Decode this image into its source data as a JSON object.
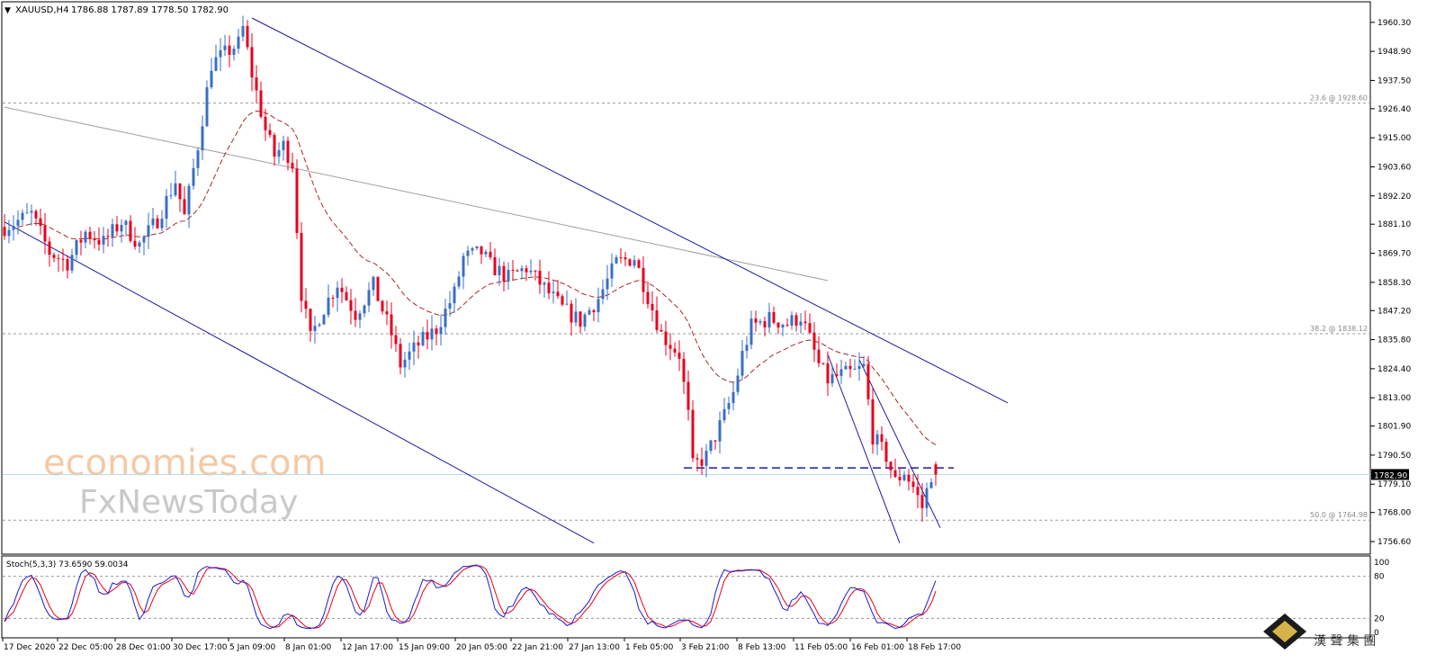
{
  "header": {
    "symbol": "XAUUSD,H4",
    "ohlc": "1786.88 1787.89 1778.50 1782.90"
  },
  "colors": {
    "background": "#ffffff",
    "axis": "#000000",
    "bull": "#3a6fc4",
    "bear": "#e8001c",
    "trendline": "#1a1aa0",
    "long_trendline": "#a0a0a0",
    "moving_average": "#a52a2a",
    "fib_line": "#9a9a9a",
    "bid_line": "#b8dcea",
    "stoch_main": "#1a1ad0",
    "stoch_signal": "#e8001c"
  },
  "watermark": {
    "line1": "economies.com",
    "line2": "FxNewsToday",
    "corner_text": "漢 聲 集 團"
  },
  "chart_data": {
    "type": "candlestick",
    "symbol": "XAUUSD",
    "timeframe": "H4",
    "ylim": [
      1752.0,
      1968.0
    ],
    "y_ticks": [
      "1960.30",
      "1948.90",
      "1937.50",
      "1926.40",
      "1915.00",
      "1903.60",
      "1892.20",
      "1881.10",
      "1869.70",
      "1858.30",
      "1847.20",
      "1835.80",
      "1824.40",
      "1813.00",
      "1801.90",
      "1790.50",
      "1779.10",
      "1768.00",
      "1756.60"
    ],
    "x_ticks": [
      "17 Dec 2020",
      "22 Dec 05:00",
      "28 Dec 01:00",
      "30 Dec 17:00",
      "5 Jan 09:00",
      "8 Jan 01:00",
      "12 Jan 17:00",
      "15 Jan 09:00",
      "20 Jan 05:00",
      "22 Jan 21:00",
      "27 Jan 13:00",
      "1 Feb 05:00",
      "3 Feb 21:00",
      "8 Feb 13:00",
      "11 Feb 05:00",
      "16 Feb 01:00",
      "18 Feb 17:00"
    ],
    "current_price": "1782.90",
    "fib_levels": [
      {
        "label": "23.6 @ 1928.60",
        "value": 1928.6
      },
      {
        "label": "38.2 @ 1838.12",
        "value": 1838.12
      },
      {
        "label": "50.0 @ 1764.98",
        "value": 1764.98
      }
    ],
    "support_level": 1785.5,
    "waypoints": [
      [
        0,
        1880
      ],
      [
        6,
        1885
      ],
      [
        10,
        1870
      ],
      [
        14,
        1866
      ],
      [
        18,
        1878
      ],
      [
        22,
        1874
      ],
      [
        26,
        1882
      ],
      [
        30,
        1873
      ],
      [
        34,
        1883
      ],
      [
        38,
        1898
      ],
      [
        40,
        1884
      ],
      [
        43,
        1912
      ],
      [
        46,
        1944
      ],
      [
        49,
        1948
      ],
      [
        52,
        1952
      ],
      [
        53,
        1958
      ],
      [
        55,
        1940
      ],
      [
        58,
        1918
      ],
      [
        60,
        1908
      ],
      [
        62,
        1912
      ],
      [
        64,
        1905
      ],
      [
        66,
        1854
      ],
      [
        68,
        1836
      ],
      [
        70,
        1845
      ],
      [
        74,
        1858
      ],
      [
        78,
        1846
      ],
      [
        82,
        1857
      ],
      [
        86,
        1838
      ],
      [
        88,
        1826
      ],
      [
        92,
        1834
      ],
      [
        96,
        1840
      ],
      [
        100,
        1854
      ],
      [
        102,
        1868
      ],
      [
        106,
        1870
      ],
      [
        108,
        1865
      ],
      [
        112,
        1860
      ],
      [
        116,
        1864
      ],
      [
        120,
        1856
      ],
      [
        124,
        1848
      ],
      [
        128,
        1843
      ],
      [
        132,
        1852
      ],
      [
        136,
        1866
      ],
      [
        140,
        1868
      ],
      [
        142,
        1858
      ],
      [
        144,
        1848
      ],
      [
        146,
        1838
      ],
      [
        148,
        1834
      ],
      [
        150,
        1830
      ],
      [
        152,
        1806
      ],
      [
        153,
        1786
      ],
      [
        156,
        1790
      ],
      [
        160,
        1806
      ],
      [
        162,
        1815
      ],
      [
        164,
        1830
      ],
      [
        166,
        1841
      ],
      [
        170,
        1844
      ],
      [
        174,
        1842
      ],
      [
        177,
        1845
      ],
      [
        179,
        1836
      ],
      [
        181,
        1826
      ],
      [
        183,
        1820
      ],
      [
        186,
        1822
      ],
      [
        189,
        1823
      ],
      [
        191,
        1825
      ],
      [
        193,
        1798
      ],
      [
        196,
        1790
      ],
      [
        198,
        1780
      ],
      [
        200,
        1784
      ],
      [
        202,
        1778
      ],
      [
        204,
        1770
      ],
      [
        206,
        1783
      ],
      [
        207,
        1787
      ]
    ],
    "stochastic": {
      "label": "Stoch(5,3,3) 73.6590 59.0034",
      "main": 73.659,
      "signal": 59.0034,
      "scale_ticks": [
        "100",
        "80",
        "20",
        "0"
      ],
      "levels": [
        80,
        20
      ]
    }
  }
}
